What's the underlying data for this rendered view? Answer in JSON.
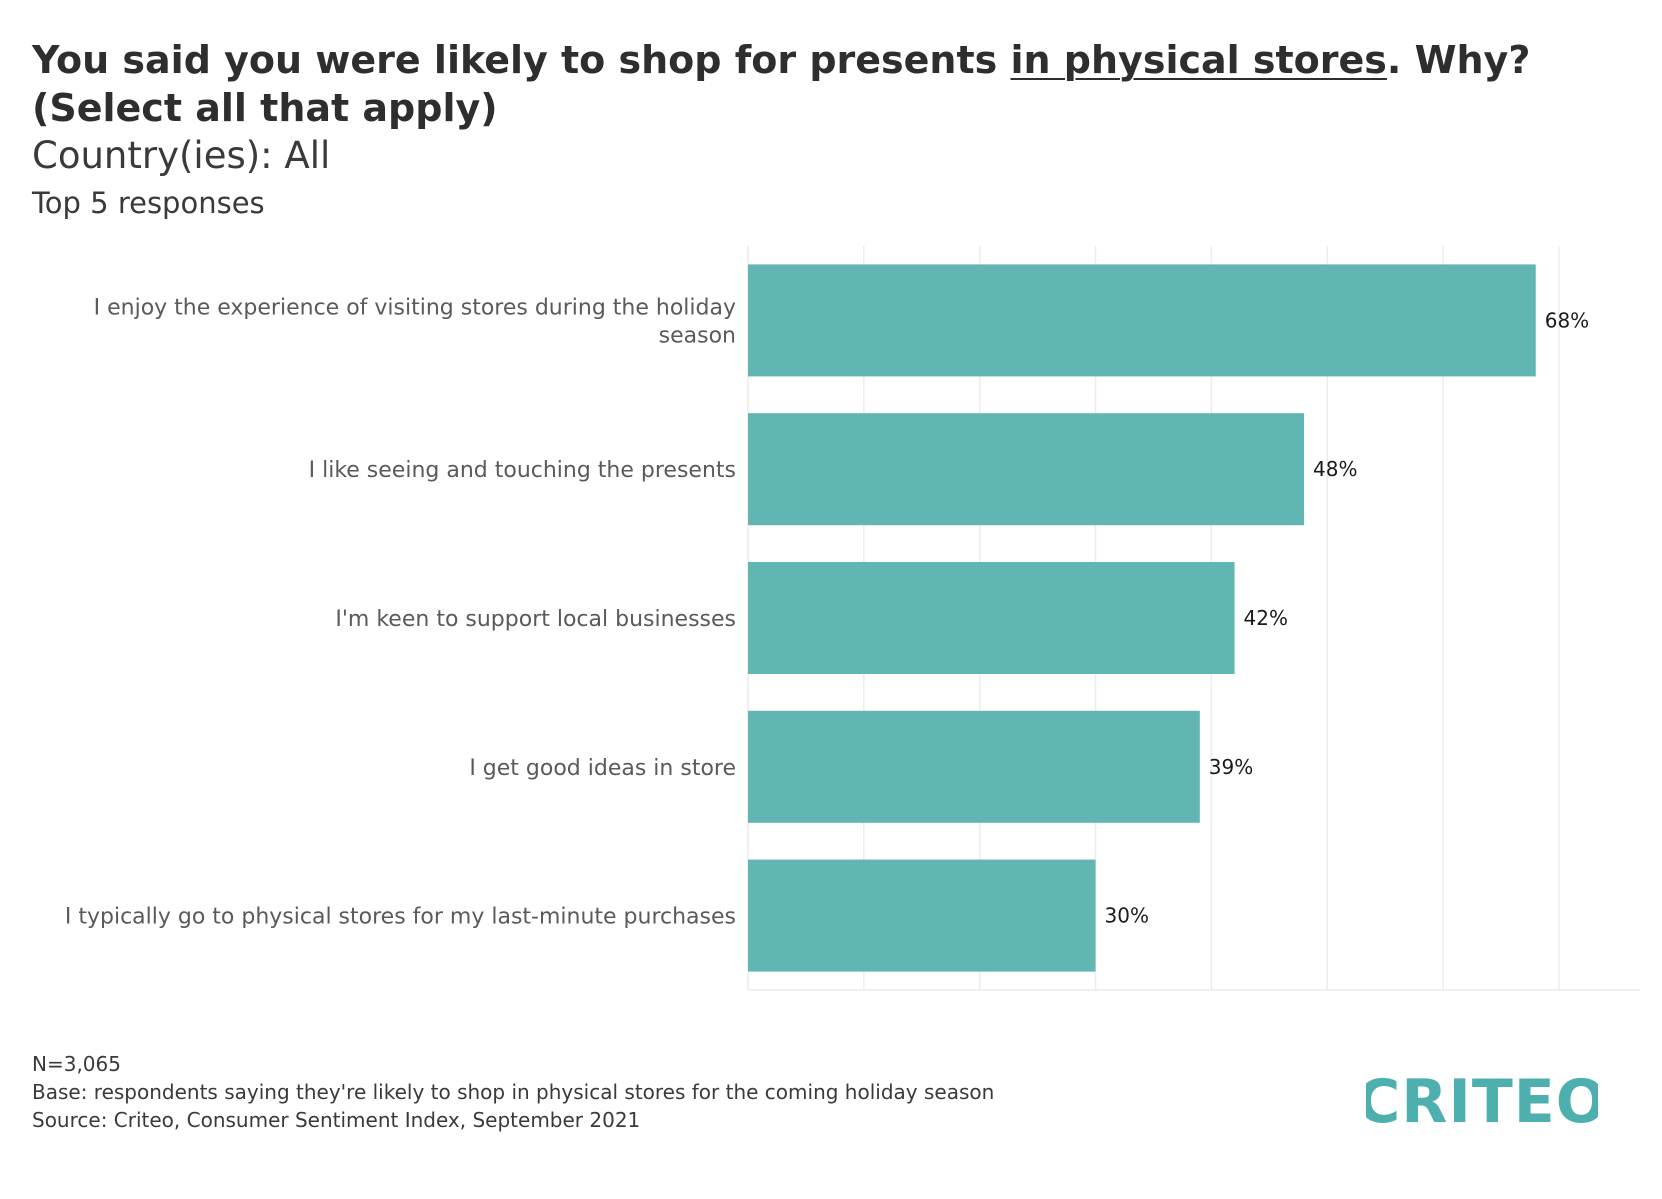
{
  "header": {
    "title_pre": "You said you were likely to shop for presents ",
    "title_underlined": "in physical stores",
    "title_post": ". Why? (Select all that apply)",
    "subtitle": "Country(ies): All",
    "subtitle2": "Top 5 responses"
  },
  "chart_data": {
    "type": "bar",
    "orientation": "horizontal",
    "categories": [
      "I enjoy the experience of visiting stores during the holiday season",
      "I like seeing and touching the presents",
      "I'm keen to support local businesses",
      "I get good ideas in store",
      "I typically go to physical stores for my last-minute purchases"
    ],
    "category_lines": [
      [
        "I enjoy the experience of visiting stores during the holiday",
        "season"
      ],
      [
        "I like seeing and touching the presents"
      ],
      [
        "I'm keen to support local businesses"
      ],
      [
        "I get good ideas in store"
      ],
      [
        "I typically go to physical stores for my last-minute purchases"
      ]
    ],
    "values": [
      68,
      48,
      42,
      39,
      30
    ],
    "value_labels": [
      "68%",
      "48%",
      "42%",
      "39%",
      "30%"
    ],
    "xlim": [
      0,
      77
    ],
    "grid": true,
    "bar_color": "#61b5b2",
    "grid_color": "#ececec"
  },
  "footer": {
    "n": "N=3,065",
    "base": "Base: respondents saying they're likely to shop in physical stores for the coming holiday season",
    "source": "Source: Criteo, Consumer Sentiment Index, September 2021"
  },
  "logo": {
    "text": "CRITEO",
    "color": "#4db0ae"
  }
}
